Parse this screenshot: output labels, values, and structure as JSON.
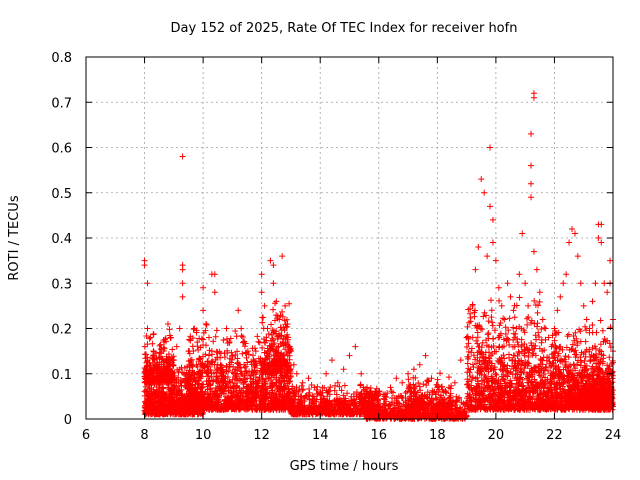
{
  "chart_data": {
    "type": "scatter",
    "title": "Day 152 of 2025, Rate Of TEC Index for receiver hofn",
    "xlabel": "GPS time / hours",
    "ylabel": "ROTI / TECUs",
    "xlim": [
      6,
      24
    ],
    "ylim": [
      0,
      0.8
    ],
    "xticks": [
      6,
      8,
      10,
      12,
      14,
      16,
      18,
      20,
      22,
      24
    ],
    "yticks": [
      0,
      0.1,
      0.2,
      0.3,
      0.4,
      0.5,
      0.6,
      0.7,
      0.8
    ],
    "xtick_labels": [
      "6",
      "8",
      "10",
      "12",
      "14",
      "16",
      "18",
      "20",
      "22",
      "24"
    ],
    "ytick_labels": [
      "0",
      "0.1",
      "0.2",
      "0.3",
      "0.4",
      "0.5",
      "0.6",
      "0.7",
      "0.8"
    ],
    "grid": true,
    "marker": "+",
    "color": "#ff0000",
    "series": [
      {
        "name": "ROTI",
        "points": [
          [
            8.0,
            0.35
          ],
          [
            8.0,
            0.34
          ],
          [
            8.1,
            0.3
          ],
          [
            8.1,
            0.2
          ],
          [
            8.2,
            0.18
          ],
          [
            8.3,
            0.15
          ],
          [
            8.4,
            0.12
          ],
          [
            8.5,
            0.1
          ],
          [
            8.2,
            0.08
          ],
          [
            8.4,
            0.06
          ],
          [
            8.6,
            0.05
          ],
          [
            8.8,
            0.07
          ],
          [
            9.0,
            0.09
          ],
          [
            9.2,
            0.11
          ],
          [
            9.3,
            0.58
          ],
          [
            9.3,
            0.34
          ],
          [
            9.3,
            0.33
          ],
          [
            9.3,
            0.3
          ],
          [
            9.3,
            0.27
          ],
          [
            9.2,
            0.2
          ],
          [
            9.1,
            0.16
          ],
          [
            9.0,
            0.13
          ],
          [
            8.8,
            0.21
          ],
          [
            8.9,
            0.18
          ],
          [
            9.5,
            0.15
          ],
          [
            9.6,
            0.12
          ],
          [
            9.7,
            0.2
          ],
          [
            9.8,
            0.17
          ],
          [
            9.9,
            0.1
          ],
          [
            10.0,
            0.29
          ],
          [
            10.0,
            0.24
          ],
          [
            10.1,
            0.21
          ],
          [
            10.2,
            0.18
          ],
          [
            10.3,
            0.15
          ],
          [
            10.3,
            0.32
          ],
          [
            10.4,
            0.32
          ],
          [
            10.4,
            0.28
          ],
          [
            10.5,
            0.12
          ],
          [
            10.6,
            0.1
          ],
          [
            10.7,
            0.08
          ],
          [
            10.8,
            0.2
          ],
          [
            10.9,
            0.17
          ],
          [
            11.0,
            0.14
          ],
          [
            11.1,
            0.11
          ],
          [
            11.2,
            0.24
          ],
          [
            11.3,
            0.2
          ],
          [
            11.4,
            0.12
          ],
          [
            11.5,
            0.09
          ],
          [
            11.6,
            0.07
          ],
          [
            11.8,
            0.15
          ],
          [
            12.0,
            0.32
          ],
          [
            12.0,
            0.28
          ],
          [
            12.1,
            0.25
          ],
          [
            12.2,
            0.2
          ],
          [
            12.3,
            0.35
          ],
          [
            12.4,
            0.34
          ],
          [
            12.4,
            0.3
          ],
          [
            12.5,
            0.26
          ],
          [
            12.6,
            0.22
          ],
          [
            12.7,
            0.36
          ],
          [
            12.8,
            0.25
          ],
          [
            12.9,
            0.18
          ],
          [
            13.0,
            0.15
          ],
          [
            13.1,
            0.12
          ],
          [
            13.2,
            0.1
          ],
          [
            13.4,
            0.08
          ],
          [
            13.6,
            0.09
          ],
          [
            13.8,
            0.07
          ],
          [
            14.0,
            0.06
          ],
          [
            14.2,
            0.1
          ],
          [
            14.4,
            0.13
          ],
          [
            14.6,
            0.08
          ],
          [
            14.8,
            0.11
          ],
          [
            15.0,
            0.14
          ],
          [
            15.2,
            0.16
          ],
          [
            15.4,
            0.1
          ],
          [
            15.6,
            0.07
          ],
          [
            15.8,
            0.05
          ],
          [
            16.0,
            0.06
          ],
          [
            16.2,
            0.05
          ],
          [
            16.4,
            0.07
          ],
          [
            16.6,
            0.09
          ],
          [
            16.8,
            0.08
          ],
          [
            17.0,
            0.1
          ],
          [
            17.2,
            0.11
          ],
          [
            17.4,
            0.12
          ],
          [
            17.6,
            0.14
          ],
          [
            17.8,
            0.09
          ],
          [
            18.0,
            0.07
          ],
          [
            18.2,
            0.06
          ],
          [
            18.4,
            0.07
          ],
          [
            18.6,
            0.08
          ],
          [
            18.8,
            0.13
          ],
          [
            19.0,
            0.18
          ],
          [
            19.2,
            0.25
          ],
          [
            19.3,
            0.33
          ],
          [
            19.4,
            0.38
          ],
          [
            19.5,
            0.53
          ],
          [
            19.6,
            0.5
          ],
          [
            19.7,
            0.36
          ],
          [
            19.8,
            0.6
          ],
          [
            19.8,
            0.47
          ],
          [
            19.9,
            0.44
          ],
          [
            19.9,
            0.39
          ],
          [
            20.0,
            0.35
          ],
          [
            20.1,
            0.29
          ],
          [
            20.2,
            0.25
          ],
          [
            20.3,
            0.22
          ],
          [
            20.4,
            0.3
          ],
          [
            20.5,
            0.27
          ],
          [
            20.6,
            0.24
          ],
          [
            20.7,
            0.2
          ],
          [
            20.8,
            0.32
          ],
          [
            20.9,
            0.41
          ],
          [
            21.0,
            0.3
          ],
          [
            21.1,
            0.25
          ],
          [
            21.2,
            0.49
          ],
          [
            21.2,
            0.52
          ],
          [
            21.2,
            0.56
          ],
          [
            21.2,
            0.63
          ],
          [
            21.3,
            0.71
          ],
          [
            21.3,
            0.72
          ],
          [
            21.3,
            0.37
          ],
          [
            21.4,
            0.33
          ],
          [
            21.5,
            0.28
          ],
          [
            21.6,
            0.22
          ],
          [
            21.7,
            0.2
          ],
          [
            21.8,
            0.18
          ],
          [
            21.9,
            0.16
          ],
          [
            22.0,
            0.2
          ],
          [
            22.1,
            0.24
          ],
          [
            22.2,
            0.27
          ],
          [
            22.3,
            0.3
          ],
          [
            22.4,
            0.32
          ],
          [
            22.5,
            0.39
          ],
          [
            22.6,
            0.42
          ],
          [
            22.7,
            0.41
          ],
          [
            22.8,
            0.36
          ],
          [
            22.9,
            0.3
          ],
          [
            23.0,
            0.25
          ],
          [
            23.1,
            0.22
          ],
          [
            23.2,
            0.2
          ],
          [
            23.3,
            0.26
          ],
          [
            23.4,
            0.3
          ],
          [
            23.5,
            0.4
          ],
          [
            23.5,
            0.43
          ],
          [
            23.6,
            0.43
          ],
          [
            23.6,
            0.39
          ],
          [
            23.7,
            0.3
          ],
          [
            23.8,
            0.28
          ],
          [
            23.9,
            0.35
          ],
          [
            23.9,
            0.3
          ],
          [
            24.0,
            0.22
          ],
          [
            24.0,
            0.15
          ]
        ]
      }
    ],
    "background_density": [
      {
        "x": [
          8.0,
          10.0
        ],
        "y": [
          0.01,
          0.13
        ],
        "count": 900
      },
      {
        "x": [
          8.0,
          9.0
        ],
        "y": [
          0.08,
          0.2
        ],
        "count": 250
      },
      {
        "x": [
          9.5,
          11.5
        ],
        "y": [
          0.02,
          0.22
        ],
        "count": 650
      },
      {
        "x": [
          11.5,
          13.0
        ],
        "y": [
          0.02,
          0.2
        ],
        "count": 500
      },
      {
        "x": [
          12.0,
          13.0
        ],
        "y": [
          0.1,
          0.28
        ],
        "count": 220
      },
      {
        "x": [
          13.0,
          16.0
        ],
        "y": [
          0.01,
          0.08
        ],
        "count": 650
      },
      {
        "x": [
          15.5,
          19.0
        ],
        "y": [
          0.0,
          0.07
        ],
        "count": 700
      },
      {
        "x": [
          17.0,
          18.5
        ],
        "y": [
          0.02,
          0.11
        ],
        "count": 200
      },
      {
        "x": [
          19.0,
          21.5
        ],
        "y": [
          0.02,
          0.28
        ],
        "count": 900
      },
      {
        "x": [
          21.5,
          24.0
        ],
        "y": [
          0.02,
          0.22
        ],
        "count": 950
      },
      {
        "x": [
          22.5,
          24.0
        ],
        "y": [
          0.03,
          0.12
        ],
        "count": 500
      }
    ]
  }
}
